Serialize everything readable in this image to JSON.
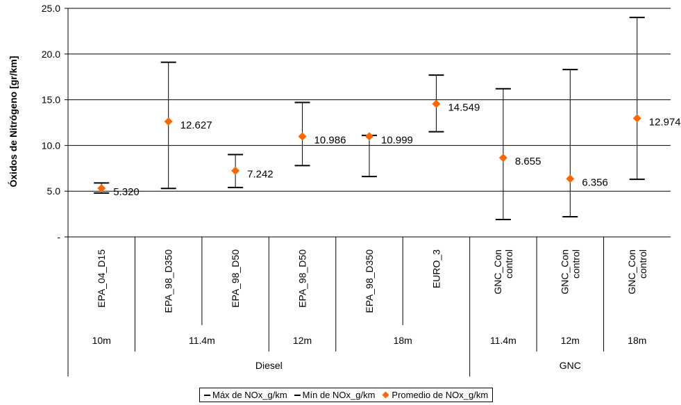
{
  "chart_data": {
    "type": "scatter",
    "ylabel": "Óxidos de Nitrógeno [gr/km]",
    "ylim": [
      0,
      25
    ],
    "yticks": [
      "-",
      "5.0",
      "10.0",
      "15.0",
      "20.0",
      "25.0"
    ],
    "grid": true,
    "legend_position": "bottom",
    "categories": [
      {
        "label": "EPA_04_D15",
        "length": "10m",
        "fuel": "Diesel",
        "max": 5.9,
        "min": 4.8,
        "mean": 5.32,
        "mean_label": "5.320"
      },
      {
        "label": "EPA_98_D350",
        "length": "11.4m",
        "fuel": "Diesel",
        "max": 19.1,
        "min": 5.3,
        "mean": 12.627,
        "mean_label": "12.627"
      },
      {
        "label": "EPA_98_D50",
        "length": "11.4m",
        "fuel": "Diesel",
        "max": 9.0,
        "min": 5.4,
        "mean": 7.242,
        "mean_label": "7.242"
      },
      {
        "label": "EPA_98_D50",
        "length": "12m",
        "fuel": "Diesel",
        "max": 14.7,
        "min": 7.8,
        "mean": 10.986,
        "mean_label": "10.986"
      },
      {
        "label": "EPA_98_D350",
        "length": "18m",
        "fuel": "Diesel",
        "max": 11.1,
        "min": 6.6,
        "mean": 10.999,
        "mean_label": "10.999"
      },
      {
        "label": "EURO_3",
        "length": "18m",
        "fuel": "Diesel",
        "max": 17.7,
        "min": 11.5,
        "mean": 14.549,
        "mean_label": "14.549"
      },
      {
        "label": "GNC_Con control",
        "length": "11.4m",
        "fuel": "GNC",
        "max": 16.2,
        "min": 1.9,
        "mean": 8.655,
        "mean_label": "8.655"
      },
      {
        "label": "GNC_Con control",
        "length": "12m",
        "fuel": "GNC",
        "max": 18.3,
        "min": 2.2,
        "mean": 6.356,
        "mean_label": "6.356"
      },
      {
        "label": "GNC_Con control",
        "length": "18m",
        "fuel": "GNC",
        "max": 24.0,
        "min": 6.3,
        "mean": 12.974,
        "mean_label": "12.974"
      }
    ],
    "length_groups": [
      {
        "label": "10m",
        "start": 0,
        "end": 0
      },
      {
        "label": "11.4m",
        "start": 1,
        "end": 2
      },
      {
        "label": "12m",
        "start": 3,
        "end": 3
      },
      {
        "label": "18m",
        "start": 4,
        "end": 5
      },
      {
        "label": "11.4m",
        "start": 6,
        "end": 6
      },
      {
        "label": "12m",
        "start": 7,
        "end": 7
      },
      {
        "label": "18m",
        "start": 8,
        "end": 8
      }
    ],
    "fuel_groups": [
      {
        "label": "Diesel",
        "start": 0,
        "end": 5
      },
      {
        "label": "GNC",
        "start": 6,
        "end": 8
      }
    ],
    "series": [
      {
        "name": "Máx de NOx_g/km",
        "color": "#000000"
      },
      {
        "name": "Mín de NOx_g/km",
        "color": "#000000"
      },
      {
        "name": "Promedio de NOx_g/km",
        "color": "#ff6600"
      }
    ]
  }
}
